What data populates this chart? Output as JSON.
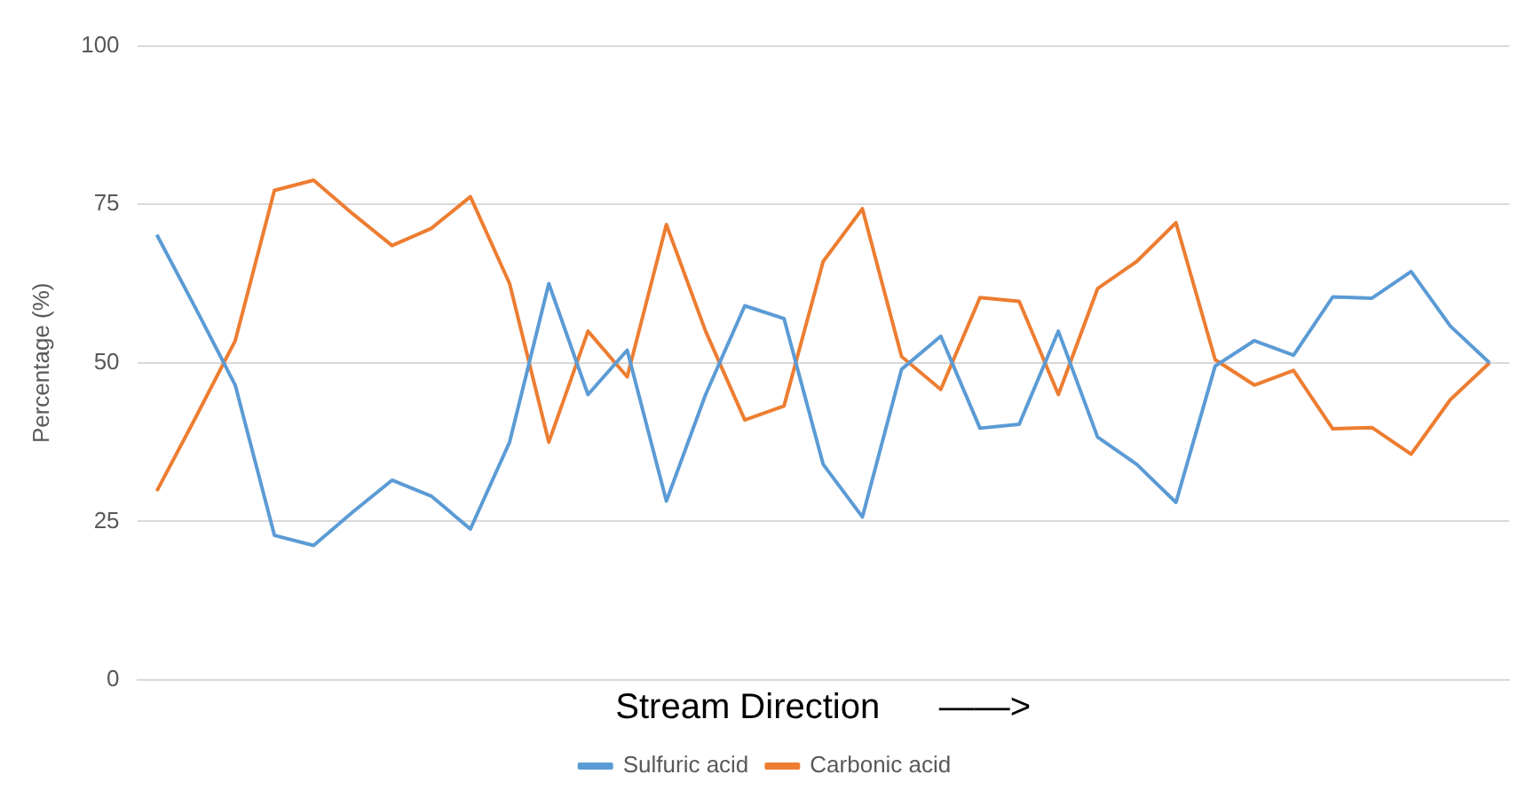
{
  "chart_data": {
    "type": "line",
    "xlabel": "Stream Direction      ——>",
    "ylabel": "Percentage (%)",
    "categories": [
      null,
      null,
      null,
      null,
      null,
      null,
      null,
      null,
      null,
      null,
      null,
      null,
      null,
      null,
      null,
      null,
      null,
      null,
      null,
      null,
      null,
      null,
      null,
      null,
      null,
      null,
      null,
      null,
      null,
      null,
      null,
      null,
      null,
      null,
      null
    ],
    "series": [
      {
        "name": "Sulfuric acid",
        "color": "#5b9bd5",
        "values": [
          70.2,
          58.5,
          46.5,
          22.8,
          21.2,
          26.5,
          31.5,
          29,
          23.8,
          37.5,
          62.5,
          45,
          52,
          28.2,
          45,
          59,
          57,
          34,
          25.7,
          49,
          54.2,
          39.7,
          40.3,
          55,
          38.3,
          34,
          28,
          49.5,
          53.5,
          51.2,
          60.4,
          60.2,
          64.4,
          55.8,
          50
        ]
      },
      {
        "name": "Carbonic acid",
        "color": "#ed7d31",
        "values": [
          29.8,
          41.5,
          53.5,
          77.2,
          78.8,
          73.5,
          68.5,
          71.2,
          76.2,
          62.5,
          37.5,
          55,
          47.8,
          71.8,
          55,
          41,
          43.2,
          66,
          74.3,
          51,
          45.8,
          60.3,
          59.7,
          45,
          61.7,
          66,
          72.1,
          50.5,
          46.5,
          48.8,
          39.6,
          39.8,
          35.6,
          44.2,
          50
        ]
      }
    ],
    "ylim": [
      0,
      100
    ],
    "yticks": [
      0,
      25,
      50,
      75,
      100
    ],
    "grid": "y",
    "legend": "bottom",
    "marker": "none",
    "line_style": "solid"
  }
}
